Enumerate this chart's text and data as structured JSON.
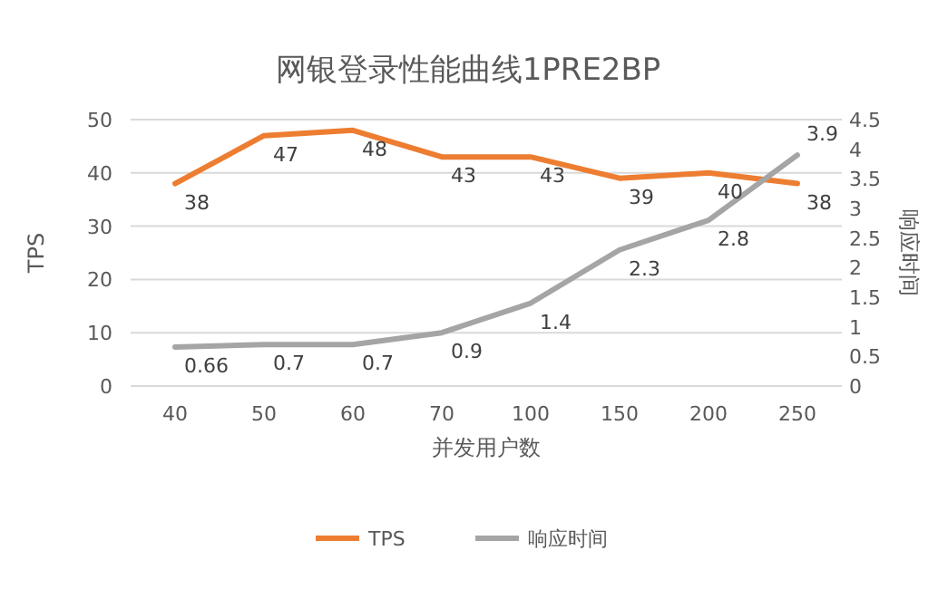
{
  "chart_data": {
    "type": "line",
    "title": "网银登录性能曲线1PRE2BP",
    "xlabel": "并发用户数",
    "ylabel": "TPS",
    "y2label": "响应时间",
    "categories": [
      "40",
      "50",
      "60",
      "70",
      "100",
      "150",
      "200",
      "250"
    ],
    "series": [
      {
        "name": "TPS",
        "color": "#ed7d31",
        "values": [
          38,
          47,
          48,
          43,
          43,
          39,
          40,
          38
        ]
      },
      {
        "name": "响应时间",
        "color": "#a5a5a5",
        "axis": "y2",
        "values": [
          0.66,
          0.7,
          0.7,
          0.9,
          1.4,
          2.3,
          2.8,
          3.9
        ]
      }
    ],
    "ylim": [
      0,
      50
    ],
    "yticks": [
      0,
      10,
      20,
      30,
      40,
      50
    ],
    "y2lim": [
      0,
      4.5
    ],
    "y2ticks": [
      0,
      0.5,
      1,
      1.5,
      2,
      2.5,
      3,
      3.5,
      4,
      4.5
    ],
    "grid": "y",
    "legend": "bottom",
    "data_labels": true
  }
}
